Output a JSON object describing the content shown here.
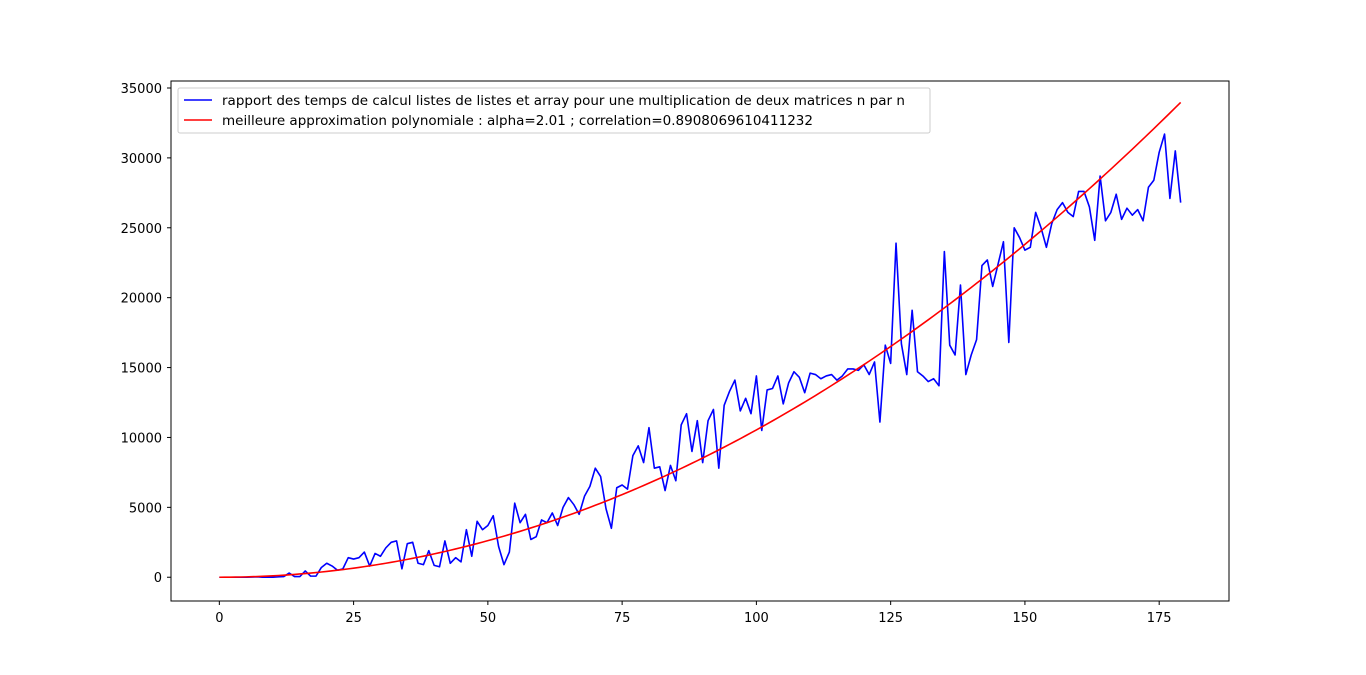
{
  "chart_data": {
    "type": "line",
    "title": "",
    "xlabel": "",
    "ylabel": "",
    "xlim": [
      -9,
      188
    ],
    "ylim": [
      -1700,
      35500
    ],
    "xticks": [
      0,
      25,
      50,
      75,
      100,
      125,
      150,
      175
    ],
    "yticks": [
      0,
      5000,
      10000,
      15000,
      20000,
      25000,
      30000,
      35000
    ],
    "legend_position": "top-left",
    "grid": false,
    "series": [
      {
        "name": "rapport des temps de calcul listes de listes et array pour une multiplication de deux matrices n par n",
        "color": "#0000ff",
        "x_start": 0,
        "x_step": 1,
        "values": [
          0,
          0,
          0,
          0,
          0,
          0,
          10,
          30,
          0,
          0,
          0,
          30,
          50,
          300,
          50,
          50,
          450,
          80,
          80,
          700,
          1000,
          800,
          500,
          600,
          1400,
          1300,
          1400,
          1800,
          800,
          1700,
          1500,
          2100,
          2500,
          2600,
          600,
          2400,
          2500,
          1000,
          900,
          1900,
          850,
          750,
          2600,
          1000,
          1400,
          1100,
          3400,
          1500,
          4000,
          3400,
          3700,
          4400,
          2200,
          900,
          1800,
          5300,
          3900,
          4500,
          2700,
          2900,
          4100,
          3900,
          4600,
          3700,
          5000,
          5700,
          5200,
          4500,
          5800,
          6500,
          7800,
          7200,
          4900,
          3500,
          6400,
          6600,
          6300,
          8700,
          9400,
          8200,
          10700,
          7800,
          7900,
          6200,
          8000,
          6900,
          10900,
          11700,
          9000,
          11200,
          8200,
          11200,
          12000,
          7800,
          12300,
          13300,
          14100,
          11900,
          12800,
          11700,
          14400,
          10500,
          13400,
          13500,
          14400,
          12400,
          13900,
          14700,
          14300,
          13200,
          14600,
          14500,
          14200,
          14400,
          14500,
          14100,
          14400,
          14900,
          14900,
          14800,
          15200,
          14500,
          15400,
          11100,
          16600,
          15300,
          23900,
          16700,
          14500,
          19100,
          14700,
          14400,
          14000,
          14200,
          13700,
          23300,
          16600,
          15900,
          20900,
          14500,
          15900,
          17000,
          22300,
          22700,
          20800,
          22400,
          24000,
          16800,
          25000,
          24300,
          23400,
          23600,
          26100,
          25000,
          23600,
          25300,
          26300,
          26800,
          26100,
          25800,
          27600,
          27600,
          26500,
          24100,
          28700,
          25500,
          26100,
          27400,
          25600,
          26400,
          25900,
          26300,
          25500,
          27900,
          28400,
          30400,
          31700,
          27100,
          30500,
          26800
        ]
      },
      {
        "name": "meilleure approximation polynomiale : alpha=2.01 ; correlation=0.8908069610411232",
        "color": "#ff0000",
        "formula": "1.0066 * x^2.01",
        "x_start": 0,
        "x_end": 179
      }
    ]
  }
}
